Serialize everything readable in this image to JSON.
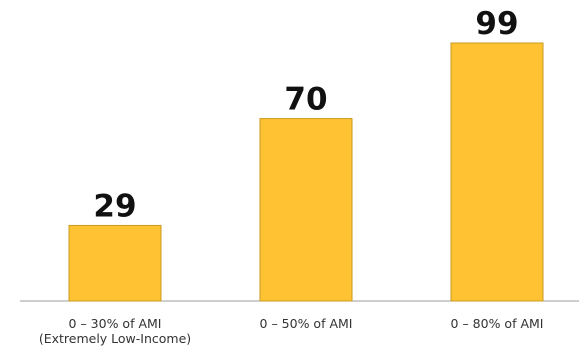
{
  "chart_data": {
    "type": "bar",
    "categories": [
      [
        "0 – 30% of AMI",
        "(Extremely Low-Income)"
      ],
      [
        "0 – 50% of AMI"
      ],
      [
        "0 – 80% of AMI"
      ]
    ],
    "values": [
      29,
      70,
      99
    ],
    "data_labels": [
      "29",
      "70",
      "99"
    ],
    "title": "",
    "xlabel": "",
    "ylabel": "",
    "ylim": [
      0,
      99
    ],
    "grid": false,
    "legend": "none",
    "colors": {
      "bar_fill": "#FFC233",
      "bar_stroke": "#C99A1E",
      "axis": "#9E9E9E",
      "value_text": "#111111",
      "category_text": "#333333"
    }
  }
}
